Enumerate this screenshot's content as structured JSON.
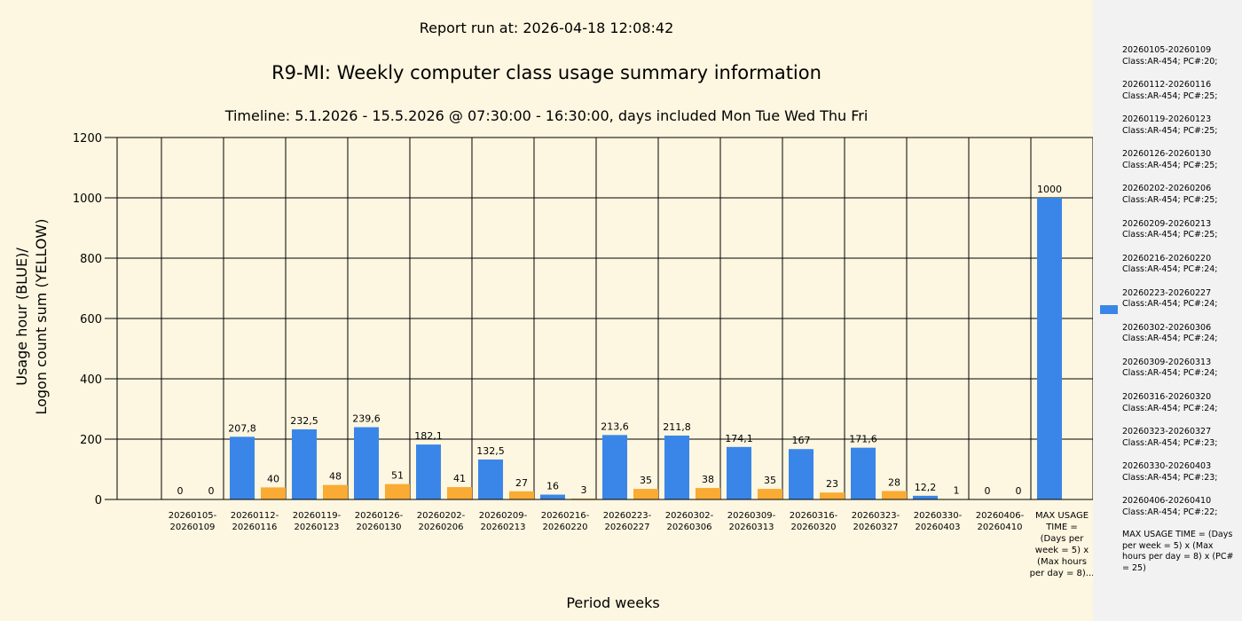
{
  "header": {
    "report_run": "Report run at: 2026-04-18 12:08:42",
    "title": "R9-MI: Weekly computer class usage summary information",
    "timeline": "Timeline:  5.1.2026  - 15.5.2026  @  07:30:00 -  16:30:00, days included Mon Tue Wed Thu Fri"
  },
  "colors": {
    "blue": "#3a86e8",
    "yellow": "#f9ab33"
  },
  "chart_data": {
    "type": "bar",
    "xlabel": "Period weeks",
    "ylabel_line1": "Usage hour (BLUE)/",
    "ylabel_line2": "Logon count sum (YELLOW)",
    "ylim": [
      0,
      1200
    ],
    "yticks": [
      "0",
      "200",
      "400",
      "600",
      "800",
      "1000",
      "1200"
    ],
    "grid": "on",
    "legend_placement": "right",
    "categories": [
      "20260105-\n20260109",
      "20260112-\n20260116",
      "20260119-\n20260123",
      "20260126-\n20260130",
      "20260202-\n20260206",
      "20260209-\n20260213",
      "20260216-\n20260220",
      "20260223-\n20260227",
      "20260302-\n20260306",
      "20260309-\n20260313",
      "20260316-\n20260320",
      "20260323-\n20260327",
      "20260330-\n20260403",
      "20260406-\n20260410",
      "MAX USAGE\nTIME =\n(Days per\nweek = 5) x\n(Max hours\nper day = 8)..."
    ],
    "series": [
      {
        "color": "#3a86e8",
        "values": [
          0,
          207.8,
          232.5,
          239.6,
          182.1,
          132.5,
          16,
          213.6,
          211.8,
          174.1,
          167,
          171.6,
          12.2,
          0,
          1000
        ],
        "labels": [
          "0",
          "207,8",
          "232,5",
          "239,6",
          "182,1",
          "132,5",
          "16",
          "213,6",
          "211,8",
          "174,1",
          "167",
          "171,6",
          "12,2",
          "0",
          "1000"
        ]
      },
      {
        "color": "#f9ab33",
        "values": [
          0,
          40,
          48,
          51,
          41,
          27,
          3,
          35,
          38,
          35,
          23,
          28,
          1,
          0,
          null
        ],
        "labels": [
          "0",
          "40",
          "48",
          "51",
          "41",
          "27",
          "3",
          "35",
          "38",
          "35",
          "23",
          "28",
          "1",
          "0",
          ""
        ]
      }
    ]
  },
  "legend": {
    "entries": [
      [
        "20260105-20260109",
        "Class:AR-454; PC#:20;"
      ],
      [
        "20260112-20260116",
        "Class:AR-454; PC#:25;"
      ],
      [
        "20260119-20260123",
        "Class:AR-454; PC#:25;"
      ],
      [
        "20260126-20260130",
        "Class:AR-454; PC#:25;"
      ],
      [
        "20260202-20260206",
        "Class:AR-454; PC#:25;"
      ],
      [
        "20260209-20260213",
        "Class:AR-454; PC#:25;"
      ],
      [
        "20260216-20260220",
        "Class:AR-454; PC#:24;"
      ],
      [
        "20260223-20260227",
        "Class:AR-454; PC#:24;"
      ],
      [
        "20260302-20260306",
        "Class:AR-454; PC#:24;"
      ],
      [
        "20260309-20260313",
        "Class:AR-454; PC#:24;"
      ],
      [
        "20260316-20260320",
        "Class:AR-454; PC#:24;"
      ],
      [
        "20260323-20260327",
        "Class:AR-454; PC#:23;"
      ],
      [
        "20260330-20260403",
        "Class:AR-454; PC#:23;"
      ],
      [
        "20260406-20260410",
        "Class:AR-454; PC#:22;"
      ]
    ],
    "max_note": "MAX USAGE TIME = (Days per week = 5) x (Max hours per day = 8) x (PC# = 25)"
  }
}
